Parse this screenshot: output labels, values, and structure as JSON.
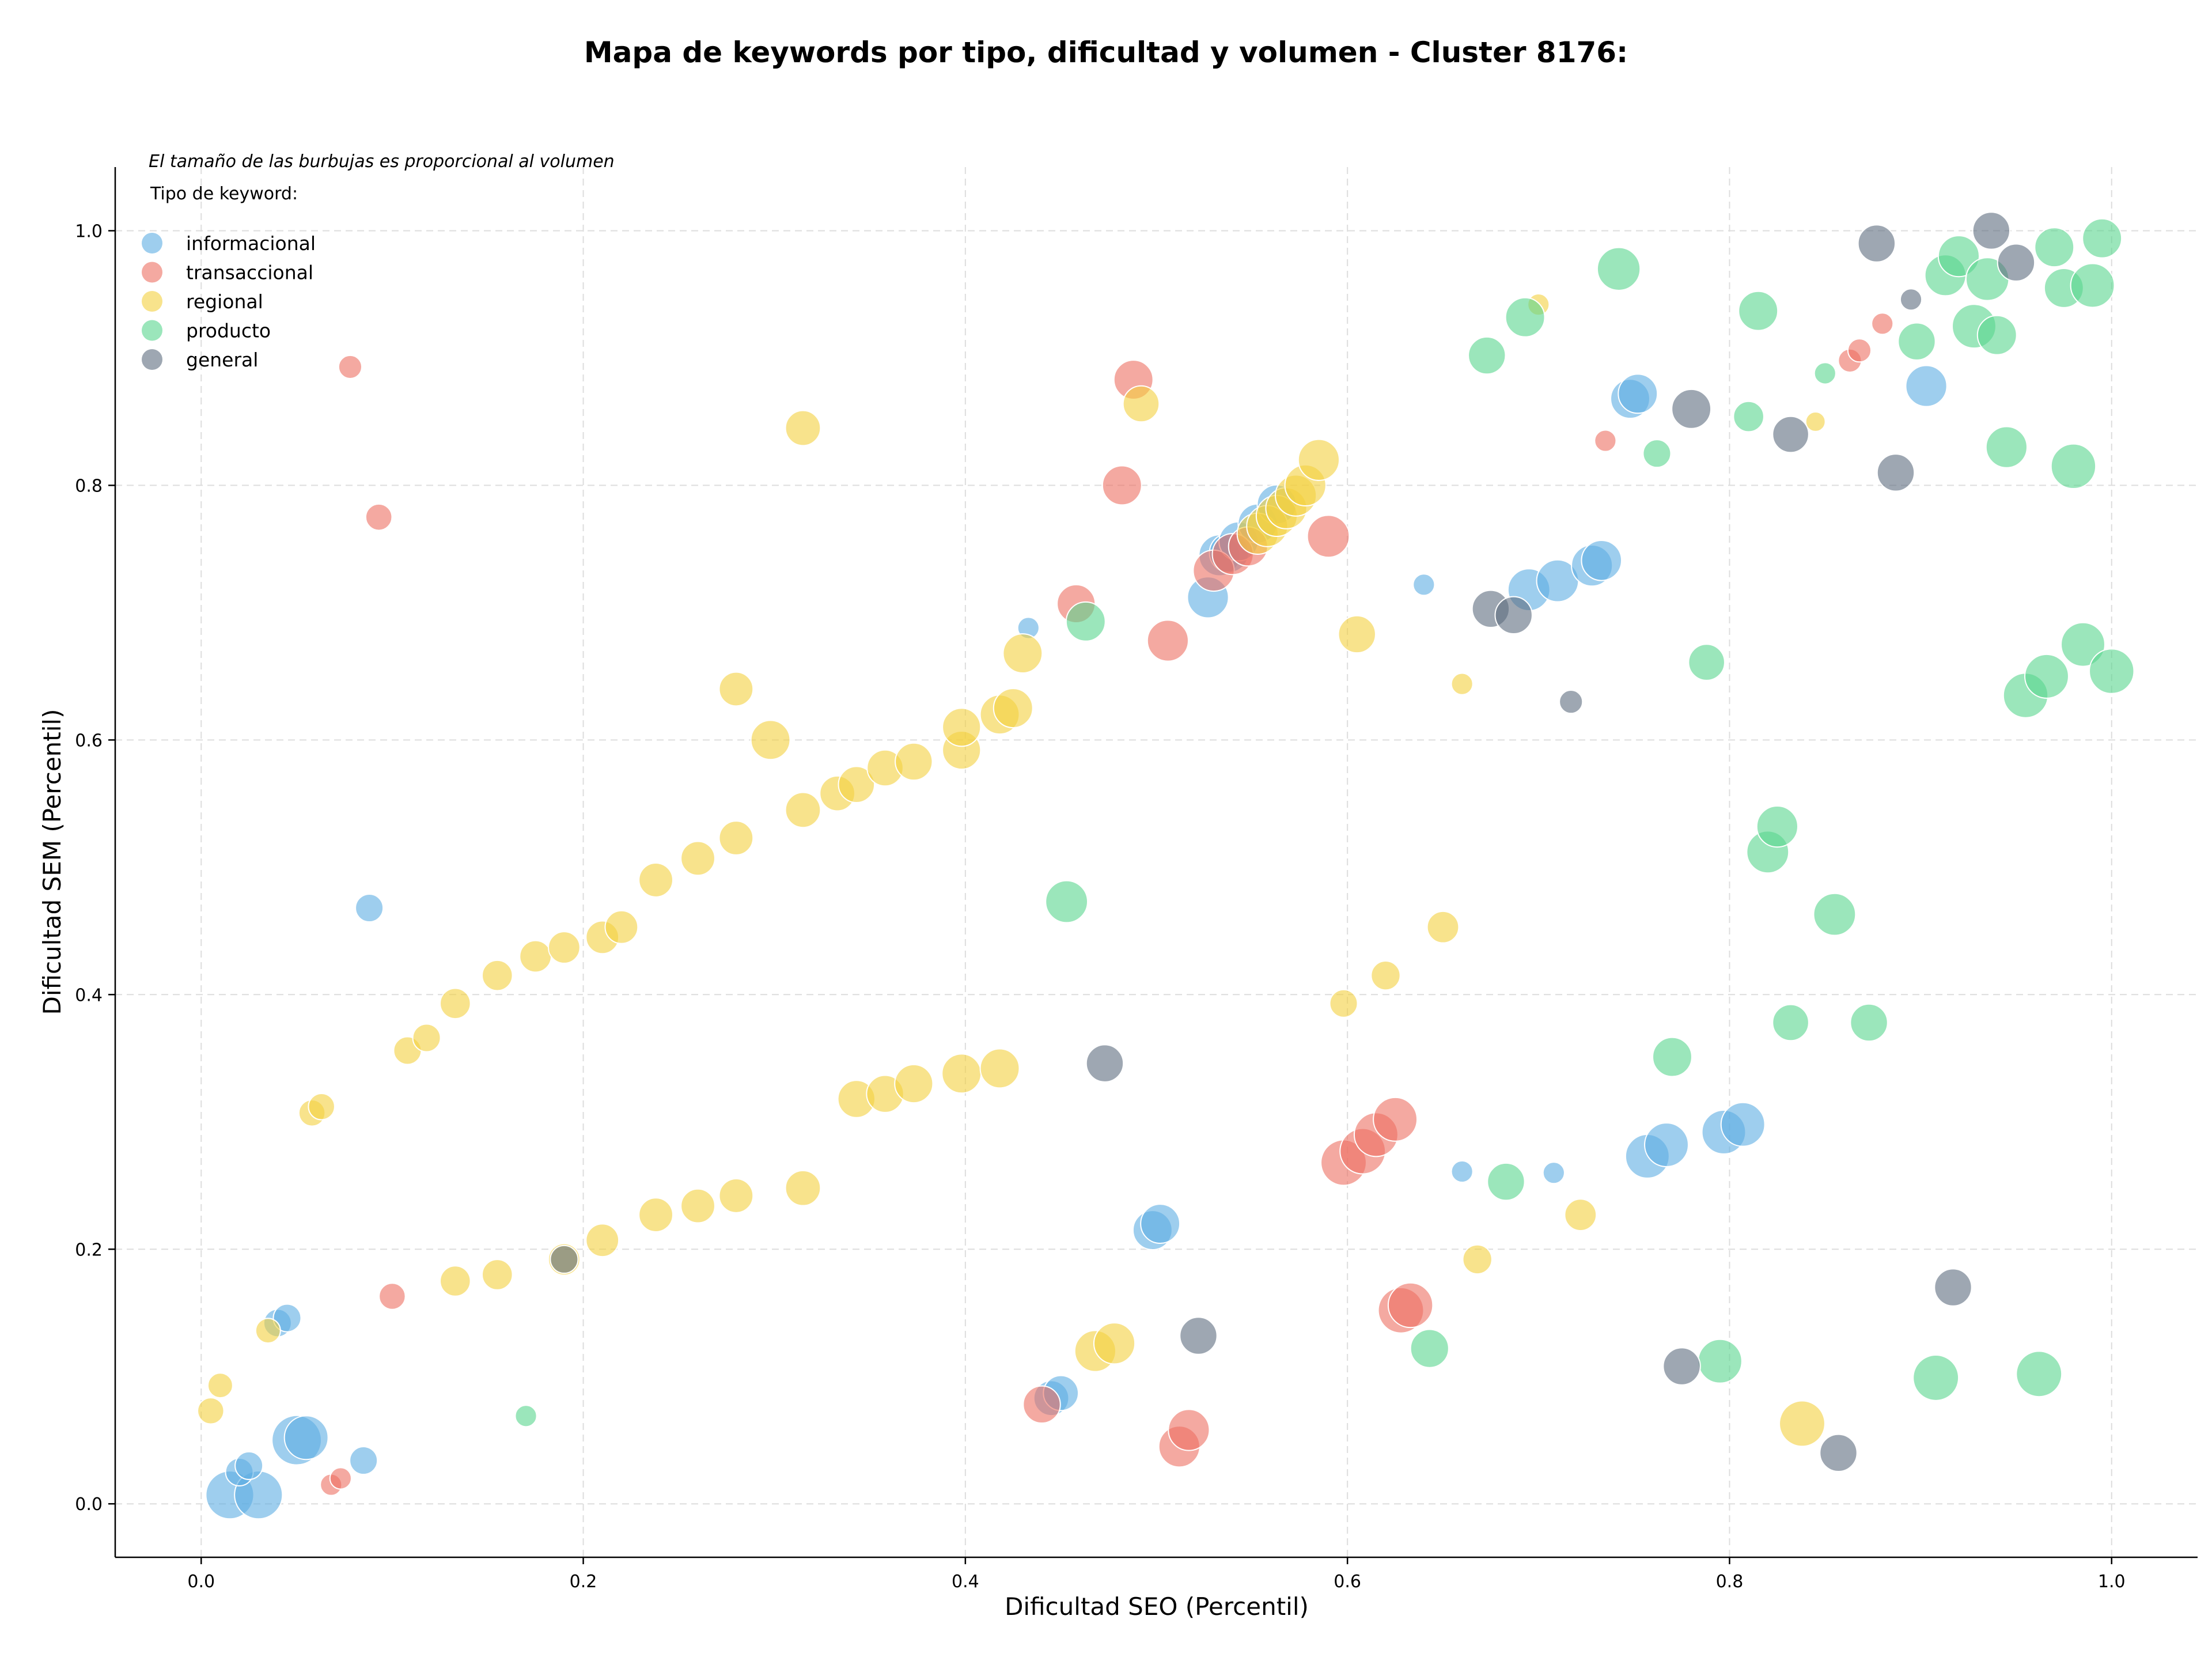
{
  "chart_data": {
    "type": "scatter",
    "title": "Mapa de keywords por tipo, dificultad y volumen - Cluster 8176:",
    "xlabel": "Dificultad SEO (Percentil)",
    "ylabel": "Dificultad SEM (Percentil)",
    "note": "El tamaño de las burbujas es proporcional al volumen",
    "legend_title": "Tipo de keyword:",
    "legend_position": "top-left",
    "xlim": [
      -0.045,
      1.045
    ],
    "ylim": [
      -0.042,
      1.05
    ],
    "xticks": [
      "0.0",
      "0.2",
      "0.4",
      "0.6",
      "0.8",
      "1.0"
    ],
    "yticks": [
      "0.0",
      "0.2",
      "0.4",
      "0.6",
      "0.8",
      "1.0"
    ],
    "grid": true,
    "series": [
      {
        "name": "informacional",
        "color": "#5DADE2",
        "points": [
          [
            0.015,
            0.007,
            3
          ],
          [
            0.03,
            0.007,
            3
          ],
          [
            0.05,
            0.05,
            3.2
          ],
          [
            0.055,
            0.052,
            2.5
          ],
          [
            0.02,
            0.025,
            1
          ],
          [
            0.025,
            0.03,
            1
          ],
          [
            0.04,
            0.142,
            1
          ],
          [
            0.045,
            0.146,
            1
          ],
          [
            0.085,
            0.034,
            1
          ],
          [
            0.088,
            0.468,
            1
          ],
          [
            0.433,
            0.688,
            0.6
          ],
          [
            0.445,
            0.083,
            1.6
          ],
          [
            0.45,
            0.087,
            1.6
          ],
          [
            0.498,
            0.215,
            2
          ],
          [
            0.502,
            0.22,
            2
          ],
          [
            0.527,
            0.712,
            2.2
          ],
          [
            0.533,
            0.745,
            2.2
          ],
          [
            0.538,
            0.747,
            2
          ],
          [
            0.543,
            0.756,
            2
          ],
          [
            0.553,
            0.77,
            2
          ],
          [
            0.563,
            0.785,
            2
          ],
          [
            0.64,
            0.722,
            0.6
          ],
          [
            0.66,
            0.261,
            0.6
          ],
          [
            0.695,
            0.718,
            2.3
          ],
          [
            0.71,
            0.725,
            2.3
          ],
          [
            0.728,
            0.737,
            2.2
          ],
          [
            0.733,
            0.741,
            2.1
          ],
          [
            0.708,
            0.26,
            0.6
          ],
          [
            0.748,
            0.868,
            2
          ],
          [
            0.752,
            0.872,
            2
          ],
          [
            0.757,
            0.273,
            2.5
          ],
          [
            0.767,
            0.282,
            2.5
          ],
          [
            0.797,
            0.292,
            2.5
          ],
          [
            0.807,
            0.298,
            2.5
          ],
          [
            0.903,
            0.878,
            2.2
          ]
        ]
      },
      {
        "name": "transaccional",
        "color": "#EC7063",
        "points": [
          [
            0.078,
            0.893,
            0.7
          ],
          [
            0.093,
            0.775,
            0.9
          ],
          [
            0.1,
            0.163,
            0.9
          ],
          [
            0.068,
            0.015,
            0.6
          ],
          [
            0.073,
            0.02,
            0.6
          ],
          [
            0.44,
            0.078,
            1.8
          ],
          [
            0.458,
            0.707,
            1.9
          ],
          [
            0.482,
            0.8,
            2
          ],
          [
            0.488,
            0.883,
            2
          ],
          [
            0.506,
            0.678,
            2.2
          ],
          [
            0.512,
            0.045,
            2.2
          ],
          [
            0.517,
            0.058,
            2.2
          ],
          [
            0.53,
            0.733,
            2.2
          ],
          [
            0.54,
            0.746,
            2.2
          ],
          [
            0.548,
            0.752,
            2
          ],
          [
            0.59,
            0.76,
            2.3
          ],
          [
            0.598,
            0.268,
            2.7
          ],
          [
            0.608,
            0.277,
            2.7
          ],
          [
            0.615,
            0.29,
            2.5
          ],
          [
            0.625,
            0.302,
            2.5
          ],
          [
            0.628,
            0.152,
            2.7
          ],
          [
            0.633,
            0.156,
            2.6
          ],
          [
            0.735,
            0.835,
            0.6
          ],
          [
            0.863,
            0.898,
            0.7
          ],
          [
            0.868,
            0.906,
            0.7
          ],
          [
            0.88,
            0.927,
            0.6
          ]
        ]
      },
      {
        "name": "regional",
        "color": "#F4D03F",
        "points": [
          [
            0.005,
            0.073,
            0.9
          ],
          [
            0.01,
            0.093,
            0.8
          ],
          [
            0.035,
            0.136,
            0.8
          ],
          [
            0.058,
            0.307,
            0.9
          ],
          [
            0.063,
            0.312,
            0.9
          ],
          [
            0.108,
            0.356,
            1
          ],
          [
            0.118,
            0.366,
            1
          ],
          [
            0.133,
            0.175,
            1.2
          ],
          [
            0.133,
            0.393,
            1.2
          ],
          [
            0.155,
            0.18,
            1.2
          ],
          [
            0.155,
            0.415,
            1.2
          ],
          [
            0.175,
            0.43,
            1.3
          ],
          [
            0.19,
            0.192,
            1.3
          ],
          [
            0.19,
            0.437,
            1.3
          ],
          [
            0.21,
            0.207,
            1.4
          ],
          [
            0.21,
            0.445,
            1.4
          ],
          [
            0.22,
            0.453,
            1.4
          ],
          [
            0.238,
            0.227,
            1.5
          ],
          [
            0.238,
            0.49,
            1.5
          ],
          [
            0.26,
            0.234,
            1.5
          ],
          [
            0.26,
            0.507,
            1.5
          ],
          [
            0.28,
            0.242,
            1.5
          ],
          [
            0.28,
            0.523,
            1.5
          ],
          [
            0.28,
            0.64,
            1.5
          ],
          [
            0.298,
            0.6,
            2
          ],
          [
            0.315,
            0.248,
            1.6
          ],
          [
            0.315,
            0.545,
            1.6
          ],
          [
            0.315,
            0.845,
            1.6
          ],
          [
            0.333,
            0.558,
            1.6
          ],
          [
            0.343,
            0.318,
            1.8
          ],
          [
            0.343,
            0.565,
            1.7
          ],
          [
            0.358,
            0.322,
            1.8
          ],
          [
            0.358,
            0.578,
            1.7
          ],
          [
            0.373,
            0.33,
            1.9
          ],
          [
            0.373,
            0.583,
            1.8
          ],
          [
            0.398,
            0.338,
            2
          ],
          [
            0.398,
            0.592,
            1.9
          ],
          [
            0.398,
            0.61,
            1.9
          ],
          [
            0.418,
            0.342,
            2
          ],
          [
            0.418,
            0.62,
            2
          ],
          [
            0.425,
            0.625,
            2
          ],
          [
            0.43,
            0.668,
            2
          ],
          [
            0.468,
            0.12,
            2.2
          ],
          [
            0.478,
            0.126,
            2.2
          ],
          [
            0.492,
            0.864,
            1.7
          ],
          [
            0.553,
            0.762,
            2.2
          ],
          [
            0.558,
            0.768,
            2.2
          ],
          [
            0.563,
            0.776,
            2.2
          ],
          [
            0.568,
            0.782,
            2.2
          ],
          [
            0.573,
            0.792,
            2.2
          ],
          [
            0.578,
            0.8,
            2.2
          ],
          [
            0.585,
            0.82,
            2.2
          ],
          [
            0.598,
            0.393,
            1
          ],
          [
            0.605,
            0.683,
            1.8
          ],
          [
            0.62,
            0.415,
            1.1
          ],
          [
            0.65,
            0.453,
            1.3
          ],
          [
            0.66,
            0.644,
            0.6
          ],
          [
            0.668,
            0.192,
            1.1
          ],
          [
            0.7,
            0.942,
            0.6
          ],
          [
            0.722,
            0.227,
            1.3
          ],
          [
            0.838,
            0.063,
            2.7
          ],
          [
            0.845,
            0.85,
            0.5
          ]
        ]
      },
      {
        "name": "producto",
        "color": "#58D68D",
        "points": [
          [
            0.17,
            0.069,
            0.6
          ],
          [
            0.453,
            0.473,
            2.3
          ],
          [
            0.463,
            0.693,
            2
          ],
          [
            0.643,
            0.122,
            1.9
          ],
          [
            0.673,
            0.902,
            1.8
          ],
          [
            0.683,
            0.253,
            1.8
          ],
          [
            0.693,
            0.932,
            2
          ],
          [
            0.742,
            0.97,
            2.4
          ],
          [
            0.762,
            0.825,
            1
          ],
          [
            0.77,
            0.351,
            2
          ],
          [
            0.788,
            0.661,
            1.7
          ],
          [
            0.795,
            0.112,
            2.5
          ],
          [
            0.81,
            0.854,
            1.2
          ],
          [
            0.815,
            0.937,
            2
          ],
          [
            0.82,
            0.512,
            2.3
          ],
          [
            0.825,
            0.532,
            2.2
          ],
          [
            0.832,
            0.378,
            1.7
          ],
          [
            0.85,
            0.888,
            0.6
          ],
          [
            0.855,
            0.463,
            2.3
          ],
          [
            0.873,
            0.378,
            1.8
          ],
          [
            0.898,
            0.913,
            1.8
          ],
          [
            0.908,
            0.099,
            2.7
          ],
          [
            0.913,
            0.965,
            2.2
          ],
          [
            0.92,
            0.98,
            2.2
          ],
          [
            0.928,
            0.925,
            2.5
          ],
          [
            0.935,
            0.962,
            2.4
          ],
          [
            0.94,
            0.918,
            2
          ],
          [
            0.945,
            0.83,
            2.2
          ],
          [
            0.955,
            0.635,
            2.6
          ],
          [
            0.962,
            0.102,
            2.7
          ],
          [
            0.966,
            0.65,
            2.5
          ],
          [
            0.97,
            0.987,
            2
          ],
          [
            0.975,
            0.955,
            2
          ],
          [
            0.98,
            0.815,
            2.6
          ],
          [
            0.985,
            0.675,
            2.5
          ],
          [
            0.99,
            0.957,
            2.5
          ],
          [
            0.995,
            0.994,
            2
          ],
          [
            1.0,
            0.654,
            2.6
          ]
        ]
      },
      {
        "name": "general",
        "color": "#5D6D7E",
        "points": [
          [
            0.19,
            0.192,
            1
          ],
          [
            0.473,
            0.346,
            1.8
          ],
          [
            0.522,
            0.132,
            1.8
          ],
          [
            0.675,
            0.703,
            1.8
          ],
          [
            0.687,
            0.698,
            1.8
          ],
          [
            0.717,
            0.63,
            0.7
          ],
          [
            0.775,
            0.108,
            1.8
          ],
          [
            0.78,
            0.86,
            2
          ],
          [
            0.832,
            0.84,
            1.7
          ],
          [
            0.857,
            0.04,
            1.8
          ],
          [
            0.877,
            0.99,
            1.8
          ],
          [
            0.887,
            0.81,
            1.8
          ],
          [
            0.895,
            0.946,
            0.6
          ],
          [
            0.917,
            0.17,
            1.8
          ],
          [
            0.937,
            1.0,
            1.8
          ],
          [
            0.95,
            0.975,
            1.8
          ]
        ]
      }
    ]
  }
}
